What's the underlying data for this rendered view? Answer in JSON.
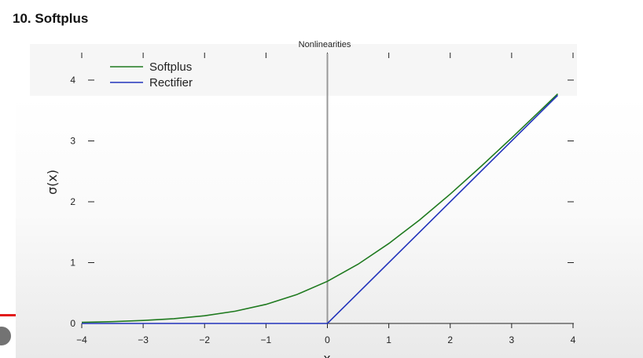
{
  "page": {
    "title": "10. Softplus"
  },
  "chart_data": {
    "type": "line",
    "title": "Nonlinearities",
    "xlabel": "x",
    "ylabel": "σ(x)",
    "xlim": [
      -4,
      4
    ],
    "ylim": [
      0,
      4
    ],
    "xticks": [
      -4,
      -3,
      -2,
      -1,
      0,
      1,
      2,
      3,
      4
    ],
    "yticks": [
      0,
      1,
      2,
      3,
      4
    ],
    "xtick_labels": [
      "−4",
      "−3",
      "−2",
      "−1",
      "0",
      "1",
      "2",
      "3",
      "4"
    ],
    "ytick_labels": [
      "0",
      "1",
      "2",
      "3",
      "4"
    ],
    "x_range_plotted": [
      -4,
      3.75
    ],
    "vertical_line_at_x": 0,
    "legend_position": "top-left",
    "series": [
      {
        "name": "Softplus",
        "color": "#1f7a1f",
        "x": [
          -4,
          -3.5,
          -3,
          -2.5,
          -2,
          -1.5,
          -1,
          -0.5,
          0,
          0.5,
          1,
          1.5,
          2,
          2.5,
          3,
          3.5,
          3.75
        ],
        "values": [
          0.018,
          0.03,
          0.049,
          0.079,
          0.127,
          0.201,
          0.313,
          0.474,
          0.693,
          0.974,
          1.313,
          1.701,
          2.127,
          2.579,
          3.049,
          3.53,
          3.773
        ]
      },
      {
        "name": "Rectifier",
        "color": "#2233bb",
        "x": [
          -4,
          0,
          3.75
        ],
        "values": [
          0,
          0,
          3.75
        ]
      }
    ]
  }
}
